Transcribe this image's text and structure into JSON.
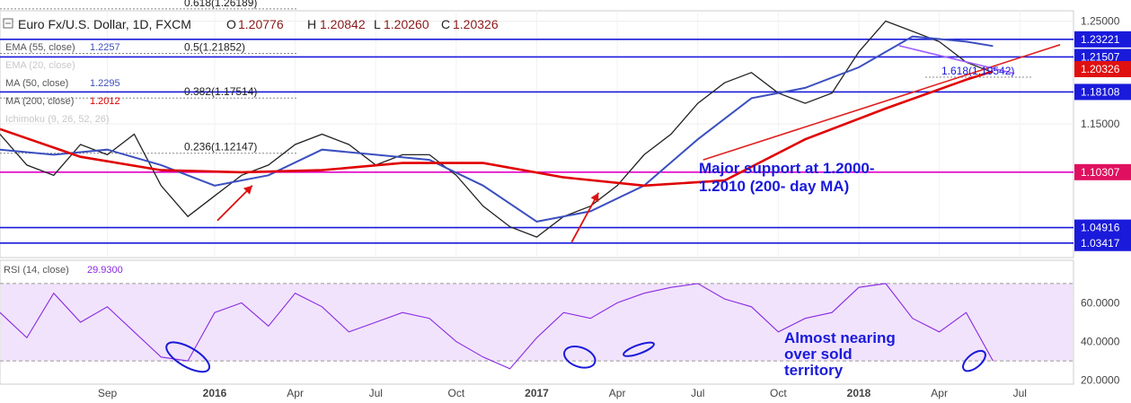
{
  "chart_data": {
    "type": "line",
    "title": "Euro Fx/U.S. Dollar, 1D, FXCM",
    "ohlc": {
      "open_label": "O",
      "open": "1.20776",
      "high_label": "H",
      "high": "1.20842",
      "low_label": "L",
      "low": "1.20260",
      "close_label": "C",
      "close": "1.20326"
    },
    "indicators": [
      {
        "label": "EMA (55, close)",
        "value": "1.2257",
        "color": "#3b4fbf"
      },
      {
        "label": "EMA (20, close)",
        "value": "",
        "color": "#3b4fbf"
      },
      {
        "label": "MA (50, close)",
        "value": "1.2295",
        "color": "#3b4fbf"
      },
      {
        "label": "MA (200, close)",
        "value": "1.2012",
        "color": "#e00000"
      },
      {
        "label": "Ichimoku (9, 26, 52, 26)",
        "value": "",
        "color": "#999999"
      }
    ],
    "x_axis_labels": [
      {
        "label": "Sep",
        "x": 4,
        "bold": false
      },
      {
        "label": "2016",
        "x": 8,
        "bold": true
      },
      {
        "label": "Apr",
        "x": 11,
        "bold": false
      },
      {
        "label": "Jul",
        "x": 14,
        "bold": false
      },
      {
        "label": "Oct",
        "x": 17,
        "bold": false
      },
      {
        "label": "2017",
        "x": 20,
        "bold": true
      },
      {
        "label": "Apr",
        "x": 23,
        "bold": false
      },
      {
        "label": "Jul",
        "x": 26,
        "bold": false
      },
      {
        "label": "Oct",
        "x": 29,
        "bold": false
      },
      {
        "label": "2018",
        "x": 32,
        "bold": true
      },
      {
        "label": "Apr",
        "x": 35,
        "bold": false
      },
      {
        "label": "Jul",
        "x": 38,
        "bold": false
      }
    ],
    "xlim": [
      0,
      40
    ],
    "price_axis": {
      "ylim": [
        1.02,
        1.26
      ],
      "ticks": [
        "1.25000",
        "1.15000"
      ],
      "tick_values": [
        1.25,
        1.15
      ]
    },
    "horizontal_levels": [
      {
        "value": 1.23221,
        "label": "1.23221",
        "line_color": "#1a1adb",
        "tag_color": "#1a1adb"
      },
      {
        "value": 1.21507,
        "label": "1.21507",
        "line_color": "#1a1adb",
        "tag_color": "#1a1adb"
      },
      {
        "value": 1.18108,
        "label": "1.18108",
        "line_color": "#1a1adb",
        "tag_color": "#1a1adb"
      },
      {
        "value": 1.10307,
        "label": "1.10307",
        "line_color": "#e000c8",
        "tag_color": "#e01060"
      },
      {
        "value": 1.04916,
        "label": "1.04916",
        "line_color": "#1a1adb",
        "tag_color": "#1a1adb"
      },
      {
        "value": 1.03417,
        "label": "1.03417",
        "line_color": "#1a1adb",
        "tag_color": "#1a1adb"
      }
    ],
    "current_price": {
      "value": 1.20326,
      "label": "1.20326",
      "tag_color": "#e01010"
    },
    "fib_levels": [
      {
        "value": 1.26189,
        "label": "0.618(1.26189)"
      },
      {
        "value": 1.21852,
        "label": "0.5(1.21852)"
      },
      {
        "value": 1.17514,
        "label": "0.382(1.17514)"
      },
      {
        "value": 1.12147,
        "label": "0.236(1.12147)"
      },
      {
        "value": 1.19542,
        "label": "1.618(1.19542)"
      }
    ],
    "annotations": {
      "support_line1": "Major support at 1.2000-",
      "support_line2": "1.2010 (200- day MA)",
      "rsi_line1": "Almost nearing",
      "rsi_line2": "over sold",
      "rsi_line3": "territory"
    },
    "price_series": {
      "x": [
        0,
        1,
        2,
        3,
        4,
        5,
        6,
        7,
        8,
        9,
        10,
        11,
        12,
        13,
        14,
        15,
        16,
        17,
        18,
        19,
        20,
        21,
        22,
        23,
        24,
        25,
        26,
        27,
        28,
        29,
        30,
        31,
        32,
        33,
        34,
        35,
        36,
        37
      ],
      "y": [
        1.14,
        1.11,
        1.1,
        1.13,
        1.12,
        1.14,
        1.09,
        1.06,
        1.08,
        1.1,
        1.11,
        1.13,
        1.14,
        1.13,
        1.11,
        1.12,
        1.12,
        1.1,
        1.07,
        1.05,
        1.04,
        1.06,
        1.07,
        1.09,
        1.12,
        1.14,
        1.17,
        1.19,
        1.2,
        1.18,
        1.17,
        1.18,
        1.22,
        1.25,
        1.24,
        1.23,
        1.21,
        1.2
      ]
    },
    "ma200_series": {
      "x": [
        0,
        3,
        6,
        9,
        12,
        15,
        18,
        21,
        24,
        27,
        30,
        33,
        36,
        37
      ],
      "y": [
        1.145,
        1.118,
        1.105,
        1.103,
        1.105,
        1.112,
        1.112,
        1.098,
        1.09,
        1.095,
        1.135,
        1.165,
        1.193,
        1.2012
      ]
    },
    "ema_series": {
      "x": [
        0,
        2,
        4,
        6,
        8,
        10,
        12,
        14,
        16,
        18,
        20,
        22,
        24,
        26,
        28,
        30,
        32,
        34,
        36,
        37
      ],
      "y": [
        1.125,
        1.12,
        1.125,
        1.11,
        1.09,
        1.1,
        1.125,
        1.12,
        1.115,
        1.09,
        1.055,
        1.065,
        1.09,
        1.135,
        1.175,
        1.185,
        1.205,
        1.235,
        1.23,
        1.2257
      ]
    },
    "trendlines": [
      {
        "x1": 26.2,
        "y1": 1.115,
        "x2": 39.5,
        "y2": 1.227,
        "color": "#e02020"
      },
      {
        "x1": 33.5,
        "y1": 1.226,
        "x2": 37.8,
        "y2": 1.199,
        "color": "#a060ff"
      }
    ],
    "arrows": [
      {
        "x1": 8.1,
        "y1": 1.056,
        "x2": 9.4,
        "y2": 1.09
      },
      {
        "x1": 21.3,
        "y1": 1.035,
        "x2": 22.3,
        "y2": 1.083
      }
    ],
    "rsi": {
      "label": "RSI (14, close)",
      "value": "29.9300",
      "ylim": [
        18,
        82
      ],
      "ticks": [
        "60.0000",
        "40.0000",
        "20.0000"
      ],
      "tick_values": [
        60,
        40,
        20
      ],
      "overbought": 70,
      "oversold": 30,
      "series": {
        "x": [
          0,
          1,
          2,
          3,
          4,
          5,
          6,
          7,
          8,
          9,
          10,
          11,
          12,
          13,
          14,
          15,
          16,
          17,
          18,
          19,
          20,
          21,
          22,
          23,
          24,
          25,
          26,
          27,
          28,
          29,
          30,
          31,
          32,
          33,
          34,
          35,
          36,
          37
        ],
        "y": [
          55,
          42,
          65,
          50,
          58,
          45,
          32,
          30,
          55,
          60,
          48,
          65,
          58,
          45,
          50,
          55,
          52,
          40,
          32,
          26,
          42,
          55,
          52,
          60,
          65,
          68,
          70,
          62,
          58,
          45,
          52,
          55,
          68,
          70,
          52,
          45,
          55,
          30
        ]
      },
      "circles": [
        {
          "cx": 7.0,
          "cy": 32,
          "rx": 0.9,
          "ry": 5,
          "rotate": 30
        },
        {
          "cx": 21.6,
          "cy": 32,
          "rx": 0.6,
          "ry": 5,
          "rotate": 20
        },
        {
          "cx": 23.8,
          "cy": 36,
          "rx": 0.6,
          "ry": 2.2,
          "rotate": -20
        },
        {
          "cx": 36.3,
          "cy": 30,
          "rx": 0.5,
          "ry": 3.5,
          "rotate": -40
        }
      ]
    }
  }
}
